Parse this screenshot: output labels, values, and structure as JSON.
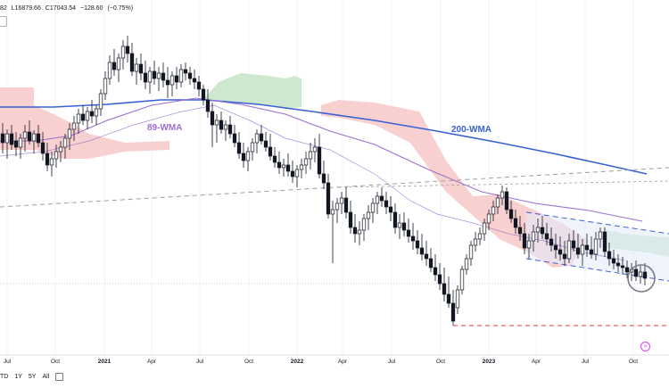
{
  "legend": {
    "prefix": "82",
    "low": "L16879.66",
    "close": "C17043.54",
    "change": "−128.60",
    "change_pct": "(−0.75%)"
  },
  "annotations": {
    "wma_89": "89-WMA",
    "wma_200": "200-WMA"
  },
  "colors": {
    "up_candle": "#131722",
    "down_candle": "#131722",
    "wma_200": "#3861d6",
    "wma_89": "#9c6fcf",
    "wma_short": "#8e5fc9",
    "cloud_bear": "#f7c8c8",
    "cloud_bull": "#c8e6c9",
    "channel": "#3861d6",
    "support": "#e53935",
    "trendline": "#9e9e9e"
  },
  "range_buttons": [
    "TD",
    "1Y",
    "5Y",
    "All"
  ],
  "chart_data": {
    "type": "candlestick",
    "x_ticks": [
      "Jul",
      "Oct",
      "2021",
      "Apr",
      "Jul",
      "Oct",
      "2022",
      "Apr",
      "Jul",
      "Oct",
      "2023",
      "Apr",
      "Jul",
      "Oct"
    ],
    "bold_ticks": [
      "2021",
      "2022",
      "2023"
    ],
    "y_axis_labels": false,
    "series": [
      {
        "name": "200-WMA",
        "type": "line"
      },
      {
        "name": "89-WMA",
        "type": "line"
      }
    ],
    "ohlc_last": {
      "low": 16879.66,
      "close": 17043.54,
      "change": -128.6,
      "change_pct": -0.75
    }
  }
}
